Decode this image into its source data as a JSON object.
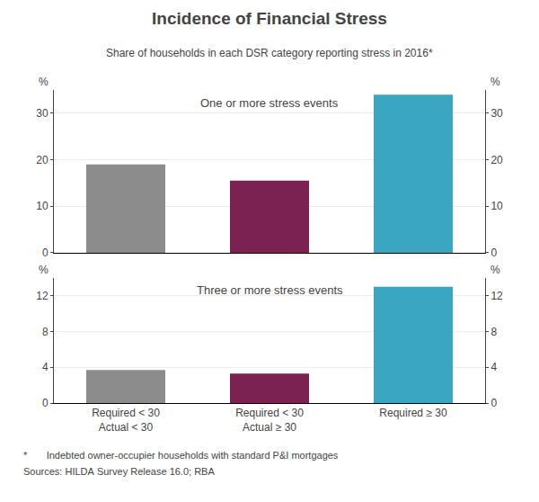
{
  "title": "Incidence of Financial Stress",
  "subtitle": "Share of households in each DSR category reporting stress in 2016*",
  "annotations": [
    "*       Indebted owner-occupier households with standard P&I mortgages",
    "Sources: HILDA Survey Release 16.0; RBA"
  ],
  "chart_data": [
    {
      "type": "bar",
      "title": "One or more stress events",
      "categories": [
        "Required < 30\nActual < 30",
        "Required < 30\nActual ≥ 30",
        "Required ≥ 30"
      ],
      "values": [
        19.0,
        15.5,
        34.0
      ],
      "colors": [
        "#8c8c8c",
        "#7b2252",
        "#3aa6c0"
      ],
      "ylim": [
        0,
        35
      ],
      "yticks": [
        0,
        10,
        20,
        30
      ],
      "y2lim": [
        0,
        35
      ],
      "y2ticks": [
        0,
        10,
        20,
        30
      ],
      "ylabel": "%",
      "y2label": "%",
      "grid": true,
      "tick_labels": "y"
    },
    {
      "type": "bar",
      "title": "Three or more stress events",
      "categories": [
        "Required < 30\nActual < 30",
        "Required < 30\nActual ≥ 30",
        "Required ≥ 30"
      ],
      "values": [
        3.7,
        3.3,
        13.0
      ],
      "colors": [
        "#8c8c8c",
        "#7b2252",
        "#3aa6c0"
      ],
      "ylim": [
        0,
        14
      ],
      "yticks": [
        0,
        4,
        8,
        12
      ],
      "y2lim": [
        0,
        14
      ],
      "y2ticks": [
        0,
        4,
        8,
        12
      ],
      "ylabel": "%",
      "y2label": "%",
      "grid": true
    }
  ]
}
